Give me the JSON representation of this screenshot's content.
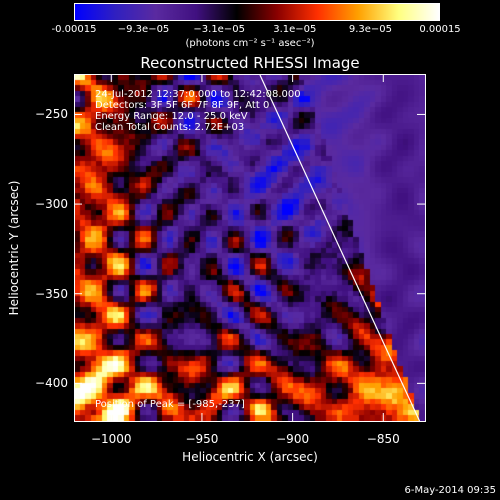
{
  "colorbar": {
    "tick_labels": [
      "-0.00015",
      "−9.3e−05",
      "−3.1e−05",
      "3.1e−05",
      "9.3e−05",
      "0.00015"
    ],
    "units": "(photons cm⁻² s⁻¹ asec⁻²)"
  },
  "title": "Reconstructed RHESSI Image",
  "annotations": {
    "time": "24-Jul-2012 12:37:0.000 to 12:42:08.000",
    "detectors": "Detectors: 3F 5F 6F 7F 8F 9F, Att 0",
    "energy": "Energy Range: 12.0 - 25.0 keV",
    "clean": "Clean    Total Counts: 2.72E+03",
    "peak": "Position of Peak = [-985,-237]"
  },
  "footer": "6-May-2014 09:35",
  "chart_data": {
    "type": "heatmap",
    "title": "Reconstructed RHESSI Image",
    "xlabel": "Heliocentric X (arcsec)",
    "ylabel": "Heliocentric Y (arcsec)",
    "xlim": [
      -1020,
      -827
    ],
    "ylim": [
      -421,
      -228
    ],
    "x_ticks": [
      -1000,
      -950,
      -900,
      -850
    ],
    "y_ticks": [
      -250,
      -300,
      -350,
      -400
    ],
    "x_tick_labels": [
      "−1000",
      "−950",
      "−900",
      "−850"
    ],
    "y_tick_labels": [
      "−250",
      "−300",
      "−350",
      "−400"
    ],
    "colorbar_range": [
      -0.00015,
      0.00015
    ],
    "colorbar_ticks": [
      -0.00015,
      -9.3e-05,
      -3.1e-05,
      3.1e-05,
      9.3e-05,
      0.00015
    ],
    "limb_line": {
      "x": [
        -918,
        -830
      ],
      "y": [
        -228,
        -421
      ]
    },
    "colormap": [
      "#0000ff",
      "#3020c0",
      "#5a2aa0",
      "#401080",
      "#000000",
      "#8a0000",
      "#ff3000",
      "#ffa000",
      "#ffff80",
      "#ffffff"
    ],
    "peak_position": [
      -985,
      -237
    ]
  }
}
